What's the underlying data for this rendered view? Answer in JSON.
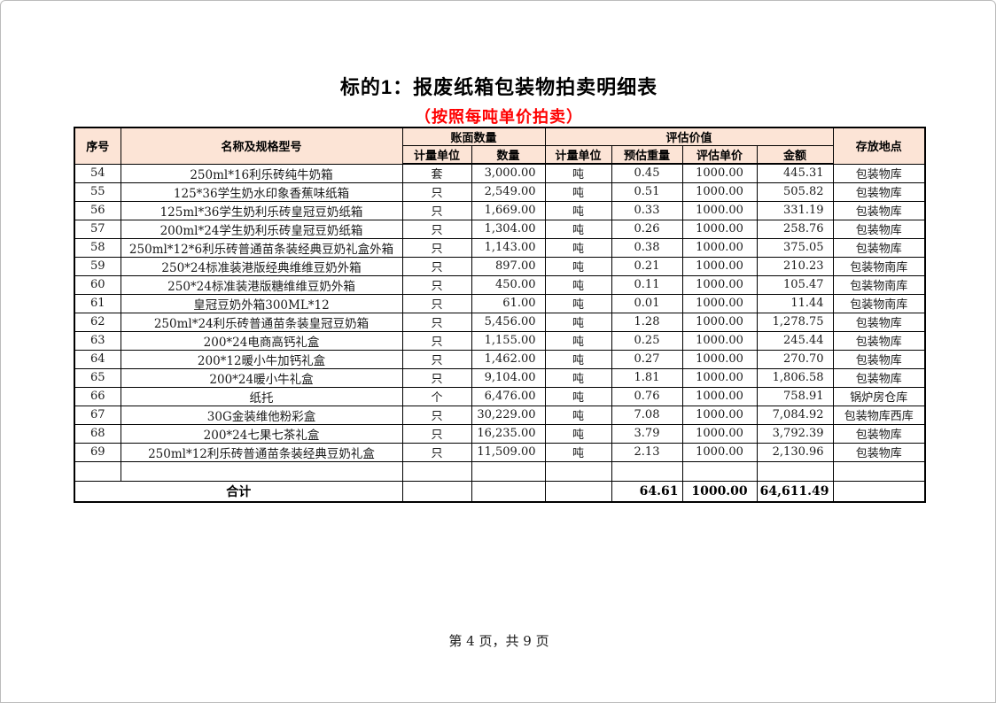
{
  "page": {
    "title": "标的1：报废纸箱包装物拍卖明细表",
    "subtitle": "（按照每吨单价拍卖）",
    "footer": "第 4 页，共 9 页",
    "subtitle_color": "#ff0000",
    "header_fill": "#fce4d6"
  },
  "table": {
    "header": {
      "seq": "序号",
      "name": "名称及规格型号",
      "book_qty_group": "账面数量",
      "eval_group": "评估价值",
      "location": "存放地点",
      "unit1": "计量单位",
      "qty": "数量",
      "unit2": "计量单位",
      "est_weight": "预估重量",
      "eval_price": "评估单价",
      "amount": "金额"
    },
    "rows": [
      {
        "c": [
          "54",
          "250ml*16利乐砖纯牛奶箱",
          "套",
          "3,000.00",
          "吨",
          "0.45",
          "1000.00",
          "445.31",
          "包装物库"
        ]
      },
      {
        "c": [
          "55",
          "125*36学生奶水印象香蕉味纸箱",
          "只",
          "2,549.00",
          "吨",
          "0.51",
          "1000.00",
          "505.82",
          "包装物库"
        ]
      },
      {
        "c": [
          "56",
          "125ml*36学生奶利乐砖皇冠豆奶纸箱",
          "只",
          "1,669.00",
          "吨",
          "0.33",
          "1000.00",
          "331.19",
          "包装物库"
        ]
      },
      {
        "c": [
          "57",
          "200ml*24学生奶利乐砖皇冠豆奶纸箱",
          "只",
          "1,304.00",
          "吨",
          "0.26",
          "1000.00",
          "258.76",
          "包装物库"
        ]
      },
      {
        "c": [
          "58",
          "250ml*12*6利乐砖普通苗条装经典豆奶礼盒外箱",
          "只",
          "1,143.00",
          "吨",
          "0.38",
          "1000.00",
          "375.05",
          "包装物库"
        ]
      },
      {
        "c": [
          "59",
          "250*24标准装港版经典维维豆奶外箱",
          "只",
          "897.00",
          "吨",
          "0.21",
          "1000.00",
          "210.23",
          "包装物南库"
        ]
      },
      {
        "c": [
          "60",
          "250*24标准装港版糖维维豆奶外箱",
          "只",
          "450.00",
          "吨",
          "0.11",
          "1000.00",
          "105.47",
          "包装物南库"
        ]
      },
      {
        "c": [
          "61",
          "皇冠豆奶外箱300ML*12",
          "只",
          "61.00",
          "吨",
          "0.01",
          "1000.00",
          "11.44",
          "包装物南库"
        ]
      },
      {
        "c": [
          "62",
          "250ml*24利乐砖普通苗条装皇冠豆奶箱",
          "只",
          "5,456.00",
          "吨",
          "1.28",
          "1000.00",
          "1,278.75",
          "包装物库"
        ]
      },
      {
        "c": [
          "63",
          "200*24电商高钙礼盒",
          "只",
          "1,155.00",
          "吨",
          "0.25",
          "1000.00",
          "245.44",
          "包装物库"
        ]
      },
      {
        "c": [
          "64",
          "200*12暖小牛加钙礼盒",
          "只",
          "1,462.00",
          "吨",
          "0.27",
          "1000.00",
          "270.70",
          "包装物库"
        ]
      },
      {
        "c": [
          "65",
          "200*24暖小牛礼盒",
          "只",
          "9,104.00",
          "吨",
          "1.81",
          "1000.00",
          "1,806.58",
          "包装物库"
        ]
      },
      {
        "c": [
          "66",
          "纸托",
          "个",
          "6,476.00",
          "吨",
          "0.76",
          "1000.00",
          "758.91",
          "锅炉房仓库"
        ]
      },
      {
        "c": [
          "67",
          "30G金装维他粉彩盒",
          "只",
          "30,229.00",
          "吨",
          "7.08",
          "1000.00",
          "7,084.92",
          "包装物库西库"
        ]
      },
      {
        "c": [
          "68",
          "200*24七果七茶礼盒",
          "只",
          "16,235.00",
          "吨",
          "3.79",
          "1000.00",
          "3,792.39",
          "包装物库"
        ]
      },
      {
        "c": [
          "69",
          "250ml*12利乐砖普通苗条装经典豆奶礼盒",
          "只",
          "11,509.00",
          "吨",
          "2.13",
          "1000.00",
          "2,130.96",
          "包装物库"
        ]
      }
    ],
    "empty_row": {
      "c": [
        "",
        "",
        "",
        "",
        "",
        "",
        "",
        "",
        ""
      ]
    },
    "total": {
      "label": "合计",
      "c": [
        "",
        "",
        "",
        "64.61",
        "1000.00",
        "64,611.49",
        ""
      ]
    }
  }
}
